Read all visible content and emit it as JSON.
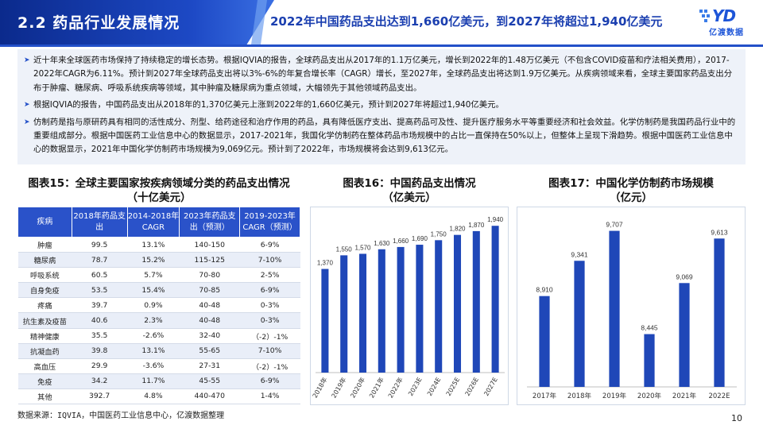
{
  "header": {
    "section_title": "2.2 药品行业发展情况",
    "headline": "2022年中国药品支出达到1,660亿美元，到2027年将超过1,940亿美元",
    "logo_mark": "YD",
    "logo_text": "亿渡数据"
  },
  "summary": {
    "bullets": [
      "近十年来全球医药市场保持了持续稳定的增长态势。根据IQVIA的报告，全球药品支出从2017年的1.1万亿美元，增长到2022年的1.48万亿美元（不包含COVID疫苗和疗法相关费用），2017-2022年CAGR为6.11%。预计到2027年全球药品支出将以3%-6%的年复合增长率（CAGR）增长，至2027年，全球药品支出将达到1.9万亿美元。从疾病领域来看，全球主要国家药品支出分布于肿瘤、糖尿病、呼吸系统疾病等领域，其中肿瘤及糖尿病为重点领域，大幅领先于其他领域药品支出。",
      "根据IQVIA的报告，中国药品支出从2018年的1,370亿美元上涨到2022年的1,660亿美元，预计到2027年将超过1,940亿美元。",
      "仿制药是指与原研药具有相同的活性成分、剂型、给药途径和治疗作用的药品，具有降低医疗支出、提高药品可及性、提升医疗服务水平等重要经济和社会效益。化学仿制药是我国药品行业中的重要组成部分。根据中国医药工业信息中心的数据显示，2017-2021年，我国化学仿制药在整体药品市场规模中的占比一直保持在50%以上，但整体上呈现下滑趋势。根据中国医药工业信息中心的数据显示，2021年中国化学仿制药市场规模为9,069亿元。预计到了2022年，市场规模将会达到9,613亿元。"
    ]
  },
  "table_section": {
    "title_line1": "图表15：全球主要国家按疾病领域分类的药品支出情况",
    "title_line2": "（十亿美元）",
    "headers": [
      "疾病",
      "2018年药品支出",
      "2014-2018年CAGR",
      "2023年药品支出（预测）",
      "2019-2023年CAGR（预测）"
    ],
    "rows": [
      [
        "肿瘤",
        "99.5",
        "13.1%",
        "140-150",
        "6-9%"
      ],
      [
        "糖尿病",
        "78.7",
        "15.2%",
        "115-125",
        "7-10%"
      ],
      [
        "呼吸系统",
        "60.5",
        "5.7%",
        "70-80",
        "2-5%"
      ],
      [
        "自身免疫",
        "53.5",
        "15.4%",
        "70-85",
        "6-9%"
      ],
      [
        "疼痛",
        "39.7",
        "0.9%",
        "40-48",
        "0-3%"
      ],
      [
        "抗生素及疫苗",
        "40.6",
        "2.3%",
        "40-48",
        "0-3%"
      ],
      [
        "精神健康",
        "35.5",
        "-2.6%",
        "32-40",
        "（-2）-1%"
      ],
      [
        "抗凝血药",
        "39.8",
        "13.1%",
        "55-65",
        "7-10%"
      ],
      [
        "高血压",
        "29.9",
        "-3.6%",
        "27-31",
        "（-2）-1%"
      ],
      [
        "免疫",
        "34.2",
        "11.7%",
        "45-55",
        "6-9%"
      ],
      [
        "其他",
        "392.7",
        "4.8%",
        "440-470",
        "1-4%"
      ]
    ]
  },
  "chart16": {
    "title_line1": "图表16：中国药品支出情况",
    "title_line2": "（亿美元）"
  },
  "chart17": {
    "title_line1": "图表17：中国化学仿制药市场规模",
    "title_line2": "（亿元）"
  },
  "chart_data": [
    {
      "type": "bar",
      "title": "图表16：中国药品支出情况（亿美元）",
      "categories": [
        "2018年",
        "2019年",
        "2020年",
        "2021年",
        "2022年",
        "2023E",
        "2024E",
        "2025E",
        "2026E",
        "2027E"
      ],
      "values": [
        1370,
        1550,
        1570,
        1630,
        1660,
        1690,
        1750,
        1820,
        1870,
        1940
      ],
      "labels": [
        "1,370",
        "1,550",
        "1,570",
        "1,630",
        "1,660",
        "1,690",
        "1,750",
        "1,820",
        "1,870",
        "1,940"
      ],
      "ylim": [
        0,
        2100
      ],
      "color": "#1f47b8"
    },
    {
      "type": "bar",
      "title": "图表17：中国化学仿制药市场规模（亿元）",
      "categories": [
        "2017年",
        "2018年",
        "2019年",
        "2020年",
        "2021年",
        "2022E"
      ],
      "values": [
        8910,
        9341,
        9707,
        8445,
        9069,
        9613
      ],
      "labels": [
        "8,910",
        "9,341",
        "9,707",
        "8,445",
        "9,069",
        "9,613"
      ],
      "ylim": [
        7800,
        9800
      ],
      "color": "#1f47b8"
    }
  ],
  "footer": {
    "source": "数据来源：IQVIA，中国医药工业信息中心，亿渡数据整理",
    "page": "10"
  }
}
